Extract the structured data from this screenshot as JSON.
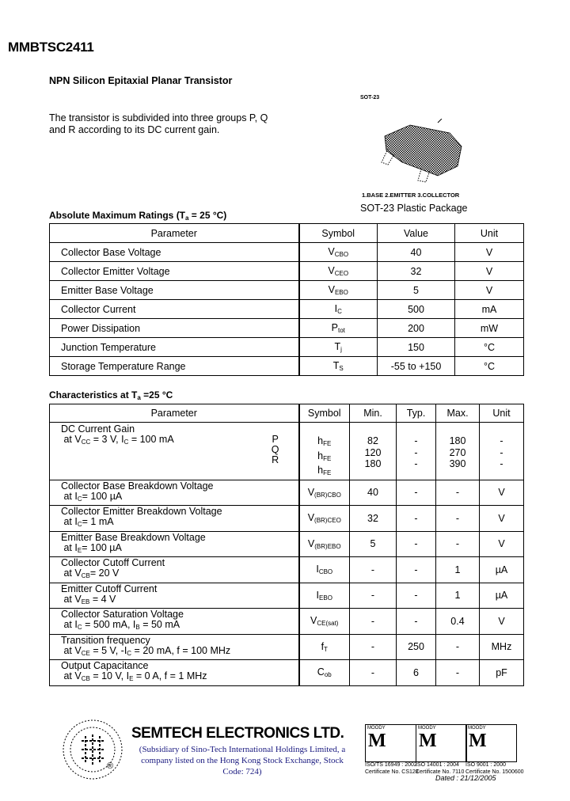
{
  "title": "MMBTSC2411",
  "subtitle": "NPN Silicon Epitaxial Planar Transistor",
  "description": "The transistor is subdivided into three groups P, Q and R according to its DC current gain.",
  "package": {
    "label": "SOT-23",
    "pins": "1.BASE  2.EMITTER  3.COLLECTOR",
    "name": "SOT-23 Plastic Package"
  },
  "abs_max": {
    "heading": "Absolute Maximum Ratings (T",
    "heading_sub": "a",
    "heading_end": " = 25 °C)",
    "headers": [
      "Parameter",
      "Symbol",
      "Value",
      "Unit"
    ],
    "rows": [
      {
        "param": "Collector Base Voltage",
        "sym": "V",
        "sub": "CBO",
        "value": "40",
        "unit": "V"
      },
      {
        "param": "Collector Emitter Voltage",
        "sym": "V",
        "sub": "CEO",
        "value": "32",
        "unit": "V"
      },
      {
        "param": "Emitter Base Voltage",
        "sym": "V",
        "sub": "EBO",
        "value": "5",
        "unit": "V"
      },
      {
        "param": "Collector Current",
        "sym": "I",
        "sub": "C",
        "value": "500",
        "unit": "mA"
      },
      {
        "param": "Power Dissipation",
        "sym": "P",
        "sub": "tot",
        "value": "200",
        "unit": "mW"
      },
      {
        "param": "Junction Temperature",
        "sym": "T",
        "sub": "j",
        "value": "150",
        "unit": "°C"
      },
      {
        "param": "Storage Temperature Range",
        "sym": "T",
        "sub": "S",
        "value": "-55 to +150",
        "unit": "°C"
      }
    ]
  },
  "characteristics": {
    "heading": "Characteristics at T",
    "heading_sub": "a",
    "heading_end": " =25 °C",
    "headers": [
      "Parameter",
      "Symbol",
      "Min.",
      "Typ.",
      "Max.",
      "Unit"
    ],
    "gain": {
      "param": "DC Current Gain",
      "cond": "at V",
      "cond_sub1": "CC",
      "cond_mid": " = 3 V, I",
      "cond_sub2": "C",
      "cond_end": " = 100 mA",
      "groups": [
        {
          "g": "P",
          "sym": "h",
          "sub": "FE",
          "min": "82",
          "typ": "-",
          "max": "180",
          "unit": "-"
        },
        {
          "g": "Q",
          "sym": "h",
          "sub": "FE",
          "min": "120",
          "typ": "-",
          "max": "270",
          "unit": "-"
        },
        {
          "g": "R",
          "sym": "h",
          "sub": "FE",
          "min": "180",
          "typ": "-",
          "max": "390",
          "unit": "-"
        }
      ]
    },
    "rows": [
      {
        "param": "Collector Base Breakdown Voltage",
        "cond": "at I<sub>C</sub>= 100 µA",
        "sym": "V",
        "sub": "(BR)CBO",
        "min": "40",
        "typ": "-",
        "max": "-",
        "unit": "V"
      },
      {
        "param": "Collector Emitter Breakdown Voltage",
        "cond": "at I<sub>C</sub>= 1 mA",
        "sym": "V",
        "sub": "(BR)CEO",
        "min": "32",
        "typ": "-",
        "max": "-",
        "unit": "V"
      },
      {
        "param": "Emitter Base Breakdown Voltage",
        "cond": "at I<sub>E</sub>= 100 µA",
        "sym": "V",
        "sub": "(BR)EBO",
        "min": "5",
        "typ": "-",
        "max": "-",
        "unit": "V"
      },
      {
        "param": "Collector Cutoff Current",
        "cond": "at V<sub>CB</sub>= 20 V",
        "sym": "I",
        "sub": "CBO",
        "min": "-",
        "typ": "-",
        "max": "1",
        "unit": "µA"
      },
      {
        "param": "Emitter Cutoff Current",
        "cond": "at V<sub>EB</sub> = 4 V",
        "sym": "I",
        "sub": "EBO",
        "min": "-",
        "typ": "-",
        "max": "1",
        "unit": "µA"
      },
      {
        "param": "Collector Saturation Voltage",
        "cond": "at I<sub>C</sub> = 500 mA, I<sub>B</sub> = 50 mA",
        "sym": "V",
        "sub": "CE(sat)",
        "min": "-",
        "typ": "-",
        "max": "0.4",
        "unit": "V"
      },
      {
        "param": "Transition frequency",
        "cond": "at V<sub>CE</sub> = 5 V, -I<sub>C</sub> = 20 mA, f = 100 MHz",
        "sym": "f",
        "sub": "T",
        "min": "-",
        "typ": "250",
        "max": "-",
        "unit": "MHz"
      },
      {
        "param": "Output Capacitance",
        "cond": "at V<sub>CB</sub> = 10 V, I<sub>E</sub> = 0 A, f = 1 MHz",
        "sym": "C",
        "sub": "ob",
        "min": "-",
        "typ": "6",
        "max": "-",
        "unit": "pF"
      }
    ]
  },
  "footer": {
    "company": "SEMTECH ELECTRONICS LTD.",
    "subsidiary": "(Subsidiary of Sino-Tech International Holdings Limited, a company listed on the Hong Kong Stock Exchange, Stock Code: 724)",
    "registered": "®",
    "certs": [
      {
        "brand": "MOODY",
        "line1": "ISO/TS 16949 : 2002",
        "line2": "Certificate No. CS128"
      },
      {
        "brand": "MOODY",
        "line1": "ISO 14001 : 2004",
        "line2": "Certificate No. 7110"
      },
      {
        "brand": "MOODY",
        "line1": "ISO 9001 : 2000",
        "line2": "Certificate No. 1500600"
      }
    ],
    "dated": "Dated : 21/12/2005"
  }
}
